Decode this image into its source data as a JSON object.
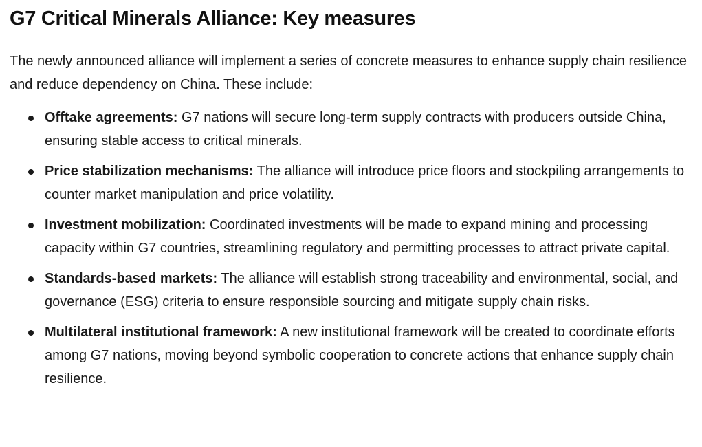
{
  "article": {
    "title": "G7 Critical Minerals Alliance: Key measures",
    "intro": "The newly announced alliance will implement a series of concrete measures to enhance supply chain resilience and reduce dependency on China. These include:",
    "measures": [
      {
        "title": "Offtake agreements:",
        "text": "G7 nations will secure long-term supply contracts with producers outside China, ensuring stable access to critical minerals."
      },
      {
        "title": "Price stabilization mechanisms:",
        "text": "The alliance will introduce price floors and stockpiling arrangements to counter market manipulation and price volatility."
      },
      {
        "title": "Investment mobilization:",
        "text": "Coordinated investments will be made to expand mining and processing capacity within G7 countries, streamlining regulatory and permitting processes to attract private capital."
      },
      {
        "title": "Standards-based markets:",
        "text": "The alliance will establish strong traceability and environmental, social, and governance (ESG) criteria to ensure responsible sourcing and mitigate supply chain risks."
      },
      {
        "title": "Multilateral institutional framework:",
        "text": "A new institutional framework will be created to coordinate efforts among G7 nations, moving beyond symbolic cooperation to concrete actions that enhance supply chain resilience."
      }
    ]
  }
}
